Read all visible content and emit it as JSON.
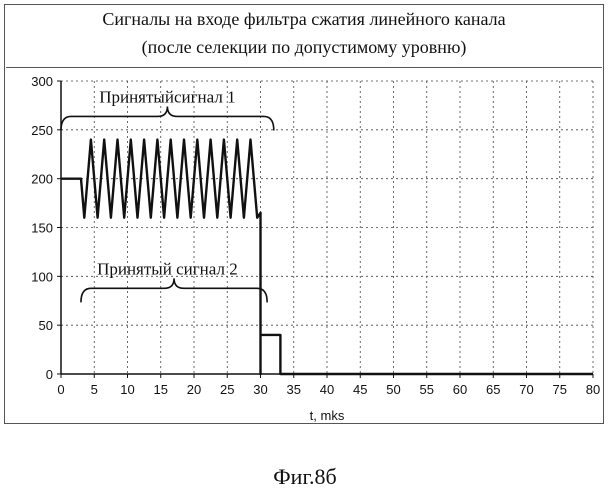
{
  "figure_caption": "Фиг.8б",
  "chart_data": {
    "type": "line",
    "title": "Сигналы на входе фильтра сжатия линейного канала",
    "subtitle": "(после селекции по допустимому уровню)",
    "xlabel": "t, mks",
    "ylabel": "",
    "xlim": [
      0,
      80
    ],
    "ylim": [
      0,
      300
    ],
    "x_ticks": [
      0,
      5,
      10,
      15,
      20,
      25,
      30,
      35,
      40,
      45,
      50,
      55,
      60,
      65,
      70,
      75,
      80
    ],
    "y_ticks": [
      0,
      50,
      100,
      150,
      200,
      250,
      300
    ],
    "grid": true,
    "series": [
      {
        "x": [
          0,
          3,
          3.5,
          4.5,
          5.5,
          6.5,
          7.5,
          8.5,
          9.5,
          10.5,
          11.5,
          12.5,
          13.5,
          14.5,
          15.5,
          16.5,
          17.5,
          18.5,
          19.5,
          20.5,
          21.5,
          22.5,
          23.5,
          24.5,
          25.5,
          26.5,
          27.5,
          28.5,
          29.5,
          30,
          30,
          30,
          33,
          33,
          80
        ],
        "y": [
          200,
          200,
          160,
          240,
          160,
          240,
          160,
          240,
          160,
          240,
          160,
          240,
          160,
          240,
          160,
          240,
          160,
          240,
          160,
          240,
          160,
          240,
          160,
          240,
          160,
          240,
          160,
          240,
          160,
          165,
          0,
          40,
          40,
          0,
          0
        ]
      }
    ],
    "annotations": [
      {
        "text": "Принятыйсигнал 1",
        "x": 16,
        "y": 276,
        "bracket": [
          0,
          32
        ]
      },
      {
        "text": "Принятый сигнал 2",
        "x": 16,
        "y": 100,
        "bracket": [
          3,
          31
        ]
      }
    ]
  }
}
